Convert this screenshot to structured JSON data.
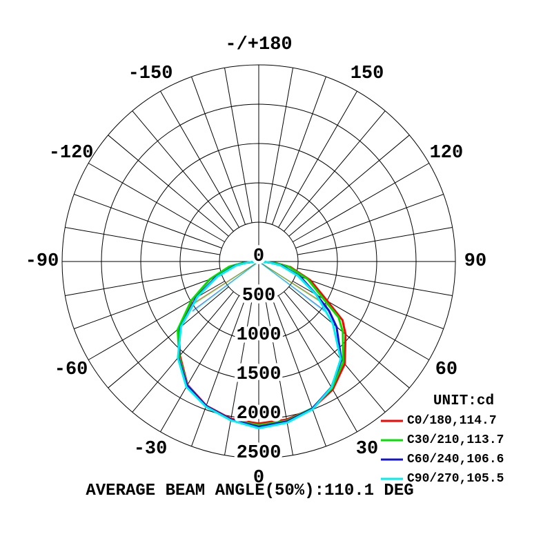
{
  "chart_data": {
    "type": "line",
    "subtype": "polar-photometric-intensity-distribution",
    "unit_label": "UNIT:cd",
    "footer": "AVERAGE BEAM ANGLE(50%):110.1 DEG",
    "radial_axis": {
      "unit": "cd",
      "ticks_cd": [
        0,
        500,
        1000,
        1500,
        2000,
        2500
      ],
      "tick_labels": [
        "0",
        "500",
        "1000",
        "1500",
        "2000",
        "2500"
      ],
      "max_cd": 2500
    },
    "angular_axis": {
      "spoke_step_deg": 10,
      "label_step_deg": 30,
      "labels": [
        {
          "angle": 180,
          "label": "-/+180"
        },
        {
          "angle": 150,
          "label": "150"
        },
        {
          "angle": 120,
          "label": "120"
        },
        {
          "angle": 90,
          "label": "90"
        },
        {
          "angle": 60,
          "label": "60"
        },
        {
          "angle": 30,
          "label": "30"
        },
        {
          "angle": 0,
          "label": "0"
        },
        {
          "angle": -30,
          "label": "-30"
        },
        {
          "angle": -60,
          "label": "-60"
        },
        {
          "angle": -90,
          "label": "-90"
        },
        {
          "angle": -120,
          "label": "-120"
        },
        {
          "angle": -150,
          "label": "-150"
        }
      ]
    },
    "series": [
      {
        "name": "C0/180",
        "beam_angle_deg": 114.7,
        "label": "C0/180,114.7",
        "color": "#ff0000",
        "angles_deg": [
          -90,
          -85,
          -80,
          -70,
          -60,
          -50,
          -40,
          -30,
          -20,
          -10,
          0,
          10,
          20,
          30,
          40,
          50,
          55,
          60,
          70,
          80,
          85,
          90
        ],
        "values_cd": [
          0,
          200,
          380,
          660,
          980,
          1330,
          1560,
          1810,
          1950,
          2030,
          2060,
          2040,
          1990,
          1880,
          1700,
          1440,
          1300,
          1010,
          700,
          410,
          215,
          0
        ],
        "beam_line": {
          "half_angle_deg": 57.35,
          "half_intensity_cd": 1030
        }
      },
      {
        "name": "C30/210",
        "beam_angle_deg": 113.7,
        "label": "C30/210,113.7",
        "color": "#00e100",
        "angles_deg": [
          -90,
          -85,
          -80,
          -70,
          -60,
          -50,
          -40,
          -30,
          -20,
          -10,
          0,
          10,
          20,
          30,
          40,
          50,
          55,
          60,
          70,
          80,
          85,
          90
        ],
        "values_cd": [
          0,
          200,
          385,
          665,
          990,
          1345,
          1575,
          1815,
          1960,
          2045,
          2080,
          2055,
          1985,
          1860,
          1670,
          1395,
          1240,
          950,
          665,
          390,
          200,
          0
        ],
        "beam_line": {
          "half_angle_deg": 56.85,
          "half_intensity_cd": 1040
        }
      },
      {
        "name": "C60/240",
        "beam_angle_deg": 106.6,
        "label": "C60/240,106.6",
        "color": "#1212d3",
        "angles_deg": [
          -90,
          -85,
          -80,
          -70,
          -60,
          -50,
          -40,
          -30,
          -20,
          -10,
          0,
          10,
          20,
          30,
          40,
          50,
          55,
          60,
          70,
          80,
          85,
          90
        ],
        "values_cd": [
          0,
          155,
          310,
          580,
          920,
          1300,
          1590,
          1820,
          1955,
          2040,
          2100,
          2065,
          1990,
          1845,
          1635,
          1290,
          1090,
          850,
          560,
          300,
          150,
          0
        ],
        "beam_line": {
          "half_angle_deg": 53.3,
          "half_intensity_cd": 1050
        }
      },
      {
        "name": "C90/270",
        "beam_angle_deg": 105.5,
        "label": "C90/270,105.5",
        "color": "#00efef",
        "angles_deg": [
          -90,
          -85,
          -80,
          -70,
          -60,
          -50,
          -40,
          -30,
          -20,
          -10,
          0,
          10,
          20,
          30,
          40,
          50,
          55,
          60,
          70,
          80,
          85,
          90
        ],
        "values_cd": [
          0,
          145,
          290,
          560,
          900,
          1290,
          1600,
          1840,
          1965,
          2050,
          2120,
          2080,
          2000,
          1850,
          1620,
          1230,
          1000,
          840,
          530,
          280,
          140,
          0
        ],
        "beam_line": {
          "half_angle_deg": 52.75,
          "half_intensity_cd": 1060
        }
      }
    ],
    "layout_hints": {
      "angle_zero_direction": "down",
      "grid": true,
      "legend_position": "bottom-right",
      "curve_region": "lower-hemisphere"
    }
  }
}
